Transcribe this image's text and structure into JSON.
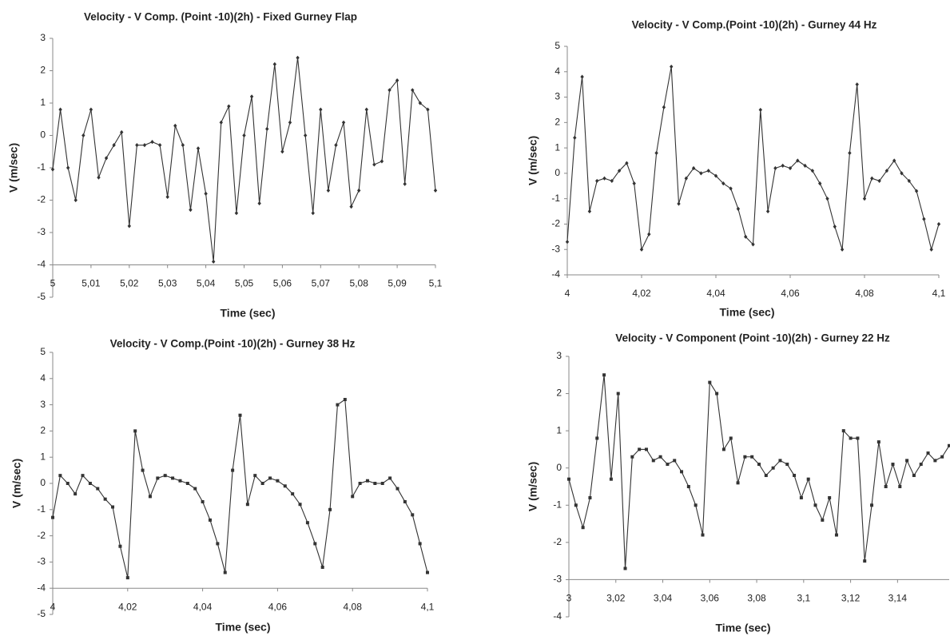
{
  "chart_data": [
    {
      "type": "line",
      "title": "Velocity  - V Comp. (Point -10)(2h) - Fixed Gurney Flap",
      "xlabel": "Time (sec)",
      "ylabel": "V (m/sec)",
      "color": "#333333",
      "marker": "diamond",
      "xaxis_at": -4,
      "xlim": [
        5,
        5.1
      ],
      "ylim": [
        -5,
        3
      ],
      "xticks": [
        5,
        {
          "value": 5.01,
          "label": "5,01"
        },
        {
          "value": 5.02,
          "label": "5,02"
        },
        {
          "value": 5.03,
          "label": "5,03"
        },
        {
          "value": 5.04,
          "label": "5,04"
        },
        {
          "value": 5.05,
          "label": "5,05"
        },
        {
          "value": 5.06,
          "label": "5,06"
        },
        {
          "value": 5.07,
          "label": "5,07"
        },
        {
          "value": 5.08,
          "label": "5,08"
        },
        {
          "value": 5.09,
          "label": "5,09"
        },
        {
          "value": 5.1,
          "label": "5,1"
        }
      ],
      "yticks": [
        -5,
        -4,
        -3,
        -2,
        -1,
        0,
        1,
        2,
        3
      ],
      "x": [
        5,
        5.002,
        5.004,
        5.006,
        5.008,
        5.01,
        5.012,
        5.014,
        5.016,
        5.018,
        5.02,
        5.022,
        5.024,
        5.026,
        5.028,
        5.03,
        5.032,
        5.034,
        5.036,
        5.038,
        5.04,
        5.042,
        5.044,
        5.046,
        5.048,
        5.05,
        5.052,
        5.054,
        5.056,
        5.058,
        5.06,
        5.062,
        5.064,
        5.066,
        5.068,
        5.07,
        5.072,
        5.074,
        5.076,
        5.078,
        5.08,
        5.082,
        5.084,
        5.086,
        5.088,
        5.09,
        5.092,
        5.094,
        5.096,
        5.098,
        5.1
      ],
      "values": [
        -1.05,
        0.8,
        -1.0,
        -2.0,
        0.0,
        0.8,
        -1.3,
        -0.7,
        -0.3,
        0.1,
        -2.8,
        -0.3,
        -0.3,
        -0.2,
        -0.3,
        -1.9,
        0.3,
        -0.3,
        -2.3,
        -0.4,
        -1.8,
        -3.9,
        0.4,
        0.9,
        -2.4,
        0.0,
        1.2,
        -2.1,
        0.2,
        2.2,
        -0.5,
        0.4,
        2.4,
        0.0,
        -2.4,
        0.8,
        -1.7,
        -0.3,
        0.4,
        -2.2,
        -1.7,
        0.8,
        -0.9,
        -0.8,
        1.4,
        1.7,
        -1.5,
        1.4,
        1.0,
        0.8,
        -1.7
      ]
    },
    {
      "type": "line",
      "title": "Velocity - V Comp.(Point -10)(2h) - Gurney 44 Hz",
      "xlabel": "Time (sec)",
      "ylabel": "V (m/sec)",
      "color": "#333333",
      "marker": "diamond",
      "xaxis_at": -4,
      "xlim": [
        4,
        4.1
      ],
      "ylim": [
        -4,
        5
      ],
      "xticks": [
        4,
        {
          "value": 4.02,
          "label": "4,02"
        },
        {
          "value": 4.04,
          "label": "4,04"
        },
        {
          "value": 4.06,
          "label": "4,06"
        },
        {
          "value": 4.08,
          "label": "4,08"
        },
        {
          "value": 4.1,
          "label": "4,1"
        }
      ],
      "yticks": [
        -4,
        -3,
        -2,
        -1,
        0,
        1,
        2,
        3,
        4,
        5
      ],
      "x": [
        4,
        4.002,
        4.004,
        4.006,
        4.008,
        4.01,
        4.012,
        4.014,
        4.016,
        4.018,
        4.02,
        4.022,
        4.024,
        4.026,
        4.028,
        4.03,
        4.032,
        4.034,
        4.036,
        4.038,
        4.04,
        4.042,
        4.044,
        4.046,
        4.048,
        4.05,
        4.052,
        4.054,
        4.056,
        4.058,
        4.06,
        4.062,
        4.064,
        4.066,
        4.068,
        4.07,
        4.072,
        4.074,
        4.076,
        4.078,
        4.08,
        4.082,
        4.084,
        4.086,
        4.088,
        4.09,
        4.092,
        4.094,
        4.096,
        4.098,
        4.1
      ],
      "values": [
        -2.7,
        1.4,
        3.8,
        -1.5,
        -0.3,
        -0.2,
        -0.3,
        0.1,
        0.4,
        -0.4,
        -3.0,
        -2.4,
        0.8,
        2.6,
        4.2,
        -1.2,
        -0.2,
        0.2,
        0.0,
        0.1,
        -0.1,
        -0.4,
        -0.6,
        -1.4,
        -2.5,
        -2.8,
        2.5,
        -1.5,
        0.2,
        0.3,
        0.2,
        0.5,
        0.3,
        0.1,
        -0.4,
        -1.0,
        -2.1,
        -3.0,
        0.8,
        3.5,
        -1.0,
        -0.2,
        -0.3,
        0.1,
        0.5,
        0.0,
        -0.3,
        -0.7,
        -1.8,
        -3.0,
        -2.0
      ]
    },
    {
      "type": "line",
      "title": "Velocity - V Comp.(Point -10)(2h) - Gurney 38 Hz",
      "xlabel": "Time (sec)",
      "ylabel": "V (m/sec)",
      "color": "#333333",
      "marker": "square",
      "xaxis_at": -4,
      "xlim": [
        4,
        4.1
      ],
      "ylim": [
        -5,
        5
      ],
      "xticks": [
        4,
        {
          "value": 4.02,
          "label": "4,02"
        },
        {
          "value": 4.04,
          "label": "4,04"
        },
        {
          "value": 4.06,
          "label": "4,06"
        },
        {
          "value": 4.08,
          "label": "4,08"
        },
        {
          "value": 4.1,
          "label": "4,1"
        }
      ],
      "yticks": [
        -5,
        -4,
        -3,
        -2,
        -1,
        0,
        1,
        2,
        3,
        4,
        5
      ],
      "x": [
        4,
        4.002,
        4.004,
        4.006,
        4.008,
        4.01,
        4.012,
        4.014,
        4.016,
        4.018,
        4.02,
        4.022,
        4.024,
        4.026,
        4.028,
        4.03,
        4.032,
        4.034,
        4.036,
        4.038,
        4.04,
        4.042,
        4.044,
        4.046,
        4.048,
        4.05,
        4.052,
        4.054,
        4.056,
        4.058,
        4.06,
        4.062,
        4.064,
        4.066,
        4.068,
        4.07,
        4.072,
        4.074,
        4.076,
        4.078,
        4.08,
        4.082,
        4.084,
        4.086,
        4.088,
        4.09,
        4.092,
        4.094,
        4.096,
        4.098,
        4.1
      ],
      "values": [
        -1.3,
        0.3,
        0.0,
        -0.4,
        0.3,
        0.0,
        -0.2,
        -0.6,
        -0.9,
        -2.4,
        -3.6,
        2.0,
        0.5,
        -0.5,
        0.2,
        0.3,
        0.2,
        0.1,
        0.0,
        -0.2,
        -0.7,
        -1.4,
        -2.3,
        -3.4,
        0.5,
        2.6,
        -0.8,
        0.3,
        0.0,
        0.2,
        0.1,
        -0.1,
        -0.4,
        -0.8,
        -1.5,
        -2.3,
        -3.2,
        -1.0,
        3.0,
        3.2,
        -0.5,
        0.0,
        0.1,
        0.0,
        0.0,
        0.2,
        -0.2,
        -0.7,
        -1.2,
        -2.3,
        -3.4
      ]
    },
    {
      "type": "line",
      "title": "Velocity - V Component (Point -10)(2h) - Gurney 22 Hz",
      "xlabel": "Time (sec)",
      "ylabel": "V (m/sec)",
      "color": "#333333",
      "marker": "square",
      "xaxis_at": -3,
      "xlim": [
        3,
        3.162
      ],
      "ylim": [
        -4,
        3
      ],
      "xticks": [
        3,
        {
          "value": 3.02,
          "label": "3,02"
        },
        {
          "value": 3.04,
          "label": "3,04"
        },
        {
          "value": 3.06,
          "label": "3,06"
        },
        {
          "value": 3.08,
          "label": "3,08"
        },
        {
          "value": 3.1,
          "label": "3,1"
        },
        {
          "value": 3.12,
          "label": "3,12"
        },
        {
          "value": 3.14,
          "label": "3,14"
        }
      ],
      "yticks": [
        -4,
        -3,
        -2,
        -1,
        0,
        1,
        2,
        3
      ],
      "x": [
        3,
        3.003,
        3.006,
        3.009,
        3.012,
        3.015,
        3.018,
        3.021,
        3.024,
        3.027,
        3.03,
        3.033,
        3.036,
        3.039,
        3.042,
        3.045,
        3.048,
        3.051,
        3.054,
        3.057,
        3.06,
        3.063,
        3.066,
        3.069,
        3.072,
        3.075,
        3.078,
        3.081,
        3.084,
        3.087,
        3.09,
        3.093,
        3.096,
        3.099,
        3.102,
        3.105,
        3.108,
        3.111,
        3.114,
        3.117,
        3.12,
        3.123,
        3.126,
        3.129,
        3.132,
        3.135,
        3.138,
        3.141,
        3.144,
        3.147,
        3.15,
        3.153,
        3.156,
        3.159,
        3.162
      ],
      "values": [
        -0.3,
        -1.0,
        -1.6,
        -0.8,
        0.8,
        2.5,
        -0.3,
        2.0,
        -2.7,
        0.3,
        0.5,
        0.5,
        0.2,
        0.3,
        0.1,
        0.2,
        -0.1,
        -0.5,
        -1.0,
        -1.8,
        2.3,
        2.0,
        0.5,
        0.8,
        -0.4,
        0.3,
        0.3,
        0.1,
        -0.2,
        0.0,
        0.2,
        0.1,
        -0.2,
        -0.8,
        -0.3,
        -1.0,
        -1.4,
        -0.8,
        -1.8,
        1.0,
        0.8,
        0.8,
        -2.5,
        -1.0,
        0.7,
        -0.5,
        0.1,
        -0.5,
        0.2,
        -0.2,
        0.1,
        0.4,
        0.2,
        0.3,
        0.6
      ]
    }
  ]
}
